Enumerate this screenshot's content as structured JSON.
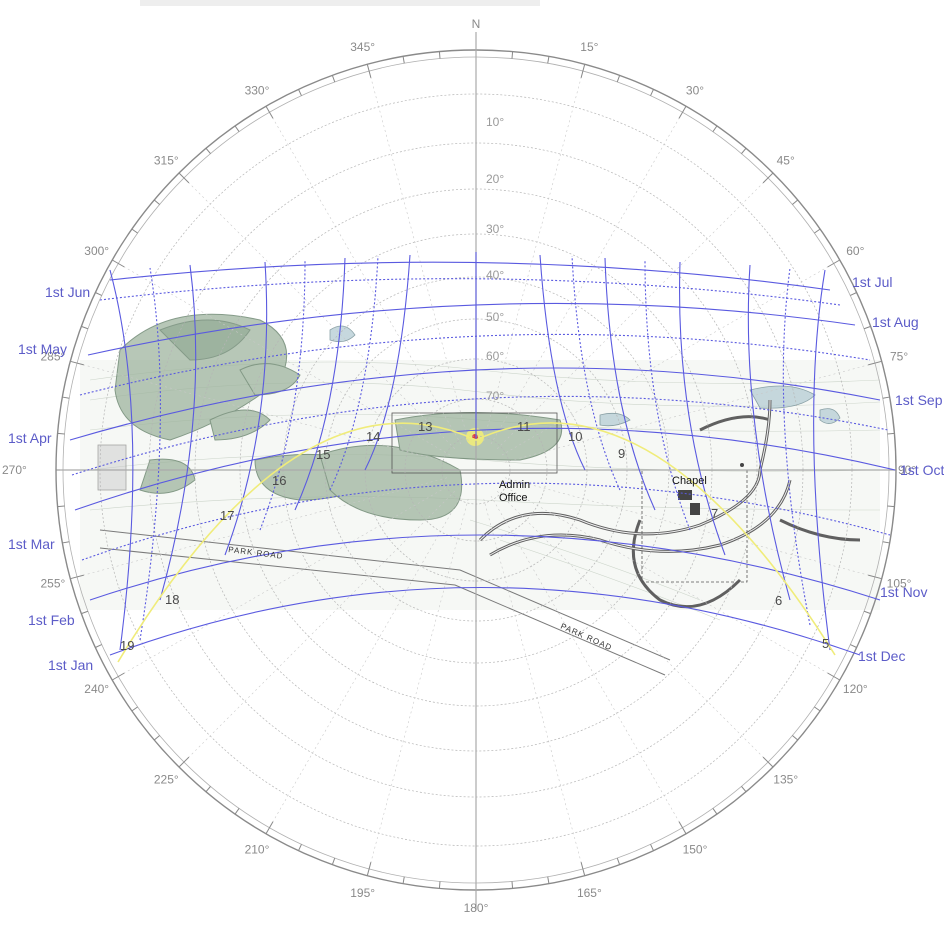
{
  "diagram": {
    "north_label": "N",
    "azimuth_labels": [
      {
        "az": 0,
        "text": ""
      },
      {
        "az": 15,
        "text": "15°"
      },
      {
        "az": 30,
        "text": "30°"
      },
      {
        "az": 45,
        "text": "45°"
      },
      {
        "az": 60,
        "text": "60°"
      },
      {
        "az": 75,
        "text": "75°"
      },
      {
        "az": 90,
        "text": "90°"
      },
      {
        "az": 105,
        "text": "105°"
      },
      {
        "az": 120,
        "text": "120°"
      },
      {
        "az": 135,
        "text": "135°"
      },
      {
        "az": 150,
        "text": "150°"
      },
      {
        "az": 165,
        "text": "165°"
      },
      {
        "az": 180,
        "text": "180°"
      },
      {
        "az": 195,
        "text": "195°"
      },
      {
        "az": 210,
        "text": "210°"
      },
      {
        "az": 225,
        "text": "225°"
      },
      {
        "az": 240,
        "text": "240°"
      },
      {
        "az": 255,
        "text": "255°"
      },
      {
        "az": 270,
        "text": "270°"
      },
      {
        "az": 285,
        "text": "285°"
      },
      {
        "az": 300,
        "text": "300°"
      },
      {
        "az": 315,
        "text": "315°"
      },
      {
        "az": 330,
        "text": "330°"
      },
      {
        "az": 345,
        "text": "345°"
      }
    ],
    "altitude_labels": [
      "10°",
      "20°",
      "30°",
      "40°",
      "50°",
      "60°",
      "70°"
    ],
    "month_labels_left": [
      "1st Jun",
      "1st May",
      "1st Apr",
      "1st Mar",
      "1st Feb",
      "1st Jan"
    ],
    "month_labels_right": [
      "1st Jul",
      "1st Aug",
      "1st Sep",
      "1st Oct",
      "1st Nov",
      "1st Dec"
    ],
    "hour_labels": [
      "5",
      "6",
      "7",
      "9",
      "10",
      "11",
      "13",
      "14",
      "15",
      "16",
      "17",
      "18",
      "19"
    ],
    "places": {
      "admin_line1": "Admin",
      "admin_line2": "Office",
      "chapel": "Chapel"
    },
    "roads": {
      "park_road_left": "PARK ROAD",
      "park_road_right": "PARK ROAD"
    },
    "colors": {
      "sun_path": "#5a5ae0",
      "solstice_arc": "#f0ec7a",
      "site_green": "#7f9e86",
      "ring": "#999999"
    }
  }
}
